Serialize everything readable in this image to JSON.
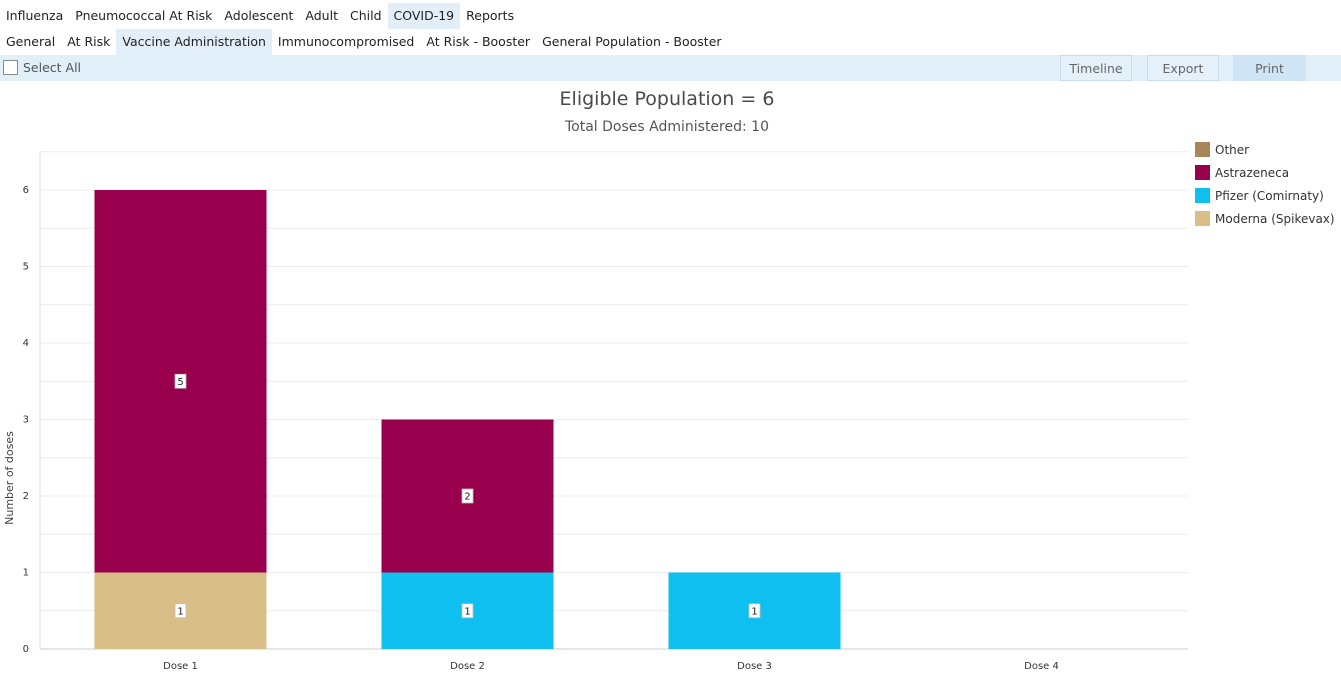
{
  "nav": {
    "top_tabs": [
      "Influenza",
      "Pneumococcal At Risk",
      "Adolescent",
      "Adult",
      "Child",
      "COVID-19",
      "Reports"
    ],
    "top_active": 5,
    "sub_tabs": [
      "General",
      "At Risk",
      "Vaccine Administration",
      "Immunocompromised",
      "At Risk - Booster",
      "General Population - Booster"
    ],
    "sub_active": 2
  },
  "toolbar": {
    "select_all_label": "Select All",
    "timeline_label": "Timeline",
    "export_label": "Export",
    "print_label": "Print"
  },
  "chart_data": {
    "type": "bar",
    "stacked": true,
    "title": "Eligible Population = 6",
    "subtitle": "Total Doses Administered: 10",
    "xlabel": "",
    "ylabel": "Number of doses",
    "categories": [
      "Dose 1",
      "Dose 2",
      "Dose 3",
      "Dose 4"
    ],
    "ylim": [
      0,
      6.5
    ],
    "yticks": [
      0,
      1,
      2,
      3,
      4,
      5,
      6
    ],
    "grid": true,
    "legend_position": "top-right",
    "series": [
      {
        "name": "Moderna (Spikevax)",
        "color": "#d9bf87",
        "values": [
          1,
          0,
          0,
          0
        ]
      },
      {
        "name": "Pfizer (Comirnaty)",
        "color": "#0fbfef",
        "values": [
          0,
          1,
          1,
          0
        ]
      },
      {
        "name": "Astrazeneca",
        "color": "#98004d",
        "values": [
          5,
          2,
          0,
          0
        ]
      },
      {
        "name": "Other",
        "color": "#a8865a",
        "values": [
          0,
          0,
          0,
          0
        ]
      }
    ],
    "legend_order": [
      "Other",
      "Astrazeneca",
      "Pfizer (Comirnaty)",
      "Moderna (Spikevax)"
    ]
  }
}
